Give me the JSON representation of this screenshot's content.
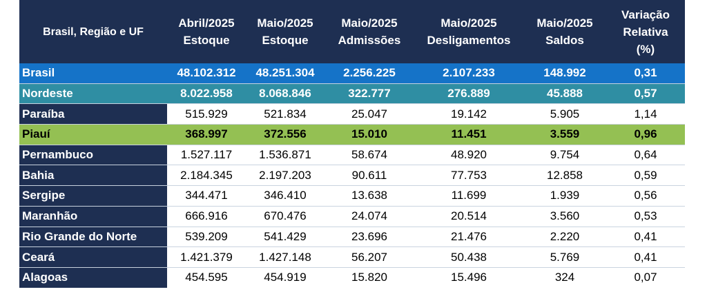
{
  "table": {
    "headers": [
      "Brasil, Região e UF",
      "Abril/2025 Estoque",
      "Maio/2025 Estoque",
      "Maio/2025 Admissões",
      "Maio/2025 Desligamentos",
      "Maio/2025 Saldos",
      "Variação Relativa (%)"
    ],
    "header_lines": [
      [
        "Brasil, Região e UF"
      ],
      [
        "Abril/2025",
        "Estoque"
      ],
      [
        "Maio/2025",
        "Estoque"
      ],
      [
        "Maio/2025",
        "Admissões"
      ],
      [
        "Maio/2025",
        "Desligamentos"
      ],
      [
        "Maio/2025",
        "Saldos"
      ],
      [
        "Variação",
        "Relativa",
        "(%)"
      ]
    ],
    "rows": [
      {
        "highlight": "brasil",
        "cells": [
          "Brasil",
          "48.102.312",
          "48.251.304",
          "2.256.225",
          "2.107.233",
          "148.992",
          "0,31"
        ]
      },
      {
        "highlight": "nordeste",
        "cells": [
          "Nordeste",
          "8.022.958",
          "8.068.846",
          "322.777",
          "276.889",
          "45.888",
          "0,57"
        ]
      },
      {
        "highlight": "",
        "cells": [
          "Paraíba",
          "515.929",
          "521.834",
          "25.047",
          "19.142",
          "5.905",
          "1,14"
        ]
      },
      {
        "highlight": "piaui",
        "cells": [
          "Piauí",
          "368.997",
          "372.556",
          "15.010",
          "11.451",
          "3.559",
          "0,96"
        ]
      },
      {
        "highlight": "",
        "cells": [
          "Pernambuco",
          "1.527.117",
          "1.536.871",
          "58.674",
          "48.920",
          "9.754",
          "0,64"
        ]
      },
      {
        "highlight": "",
        "cells": [
          "Bahia",
          "2.184.345",
          "2.197.203",
          "90.611",
          "77.753",
          "12.858",
          "0,59"
        ]
      },
      {
        "highlight": "",
        "cells": [
          "Sergipe",
          "344.471",
          "346.410",
          "13.638",
          "11.699",
          "1.939",
          "0,56"
        ]
      },
      {
        "highlight": "",
        "cells": [
          "Maranhão",
          "666.916",
          "670.476",
          "24.074",
          "20.514",
          "3.560",
          "0,53"
        ]
      },
      {
        "highlight": "",
        "cells": [
          "Rio Grande do Norte",
          "539.209",
          "541.429",
          "23.696",
          "21.476",
          "2.220",
          "0,41"
        ]
      },
      {
        "highlight": "",
        "cells": [
          "Ceará",
          "1.421.379",
          "1.427.148",
          "56.207",
          "50.438",
          "5.769",
          "0,41"
        ]
      },
      {
        "highlight": "",
        "cells": [
          "Alagoas",
          "454.595",
          "454.919",
          "15.820",
          "15.496",
          "324",
          "0,07"
        ]
      }
    ]
  },
  "colors": {
    "header_bg": "#1e2f52",
    "brasil_row": "#1573c8",
    "nordeste_row": "#2f8ea3",
    "piaui_row": "#94c053"
  }
}
